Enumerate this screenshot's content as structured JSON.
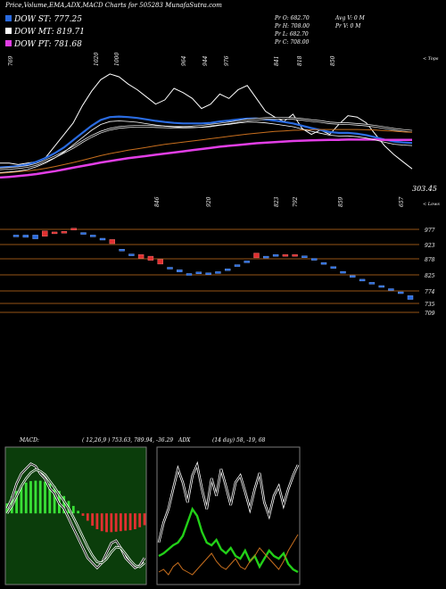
{
  "header": {
    "title": "Price,Volume,EMA,ADX,MACD Charts for 505283 MunafaSutra.com"
  },
  "legend": [
    {
      "label": "DOW ST: 777.25",
      "color": "#2a6be0"
    },
    {
      "label": "DOW MT: 819.71",
      "color": "#ffffff"
    },
    {
      "label": "DOW PT: 781.68",
      "color": "#e23ee6"
    }
  ],
  "ohlc": {
    "open": "Pr  O: 682.70",
    "high": "Pr  H: 708.00",
    "low": "Pr  L: 682.70",
    "close": "Pr  C: 708.00",
    "avg_volume": "Avg V: 0  M",
    "volume": "Pr  V: 0  M"
  },
  "chart_data": [
    {
      "type": "line",
      "name": "price-ema-panel",
      "top_label": "< Tops",
      "bottom_label": "< Lows",
      "last_value_label": "303.45",
      "top_annotations": [
        "769",
        "1020",
        "1000",
        "964",
        "944",
        "976",
        "841",
        "818",
        "850"
      ],
      "bottom_annotations": [
        "846",
        "920",
        "823",
        "792",
        "859",
        "657"
      ],
      "x": [
        0,
        1,
        2,
        3,
        4,
        5,
        6,
        7,
        8,
        9,
        10,
        11,
        12,
        13,
        14,
        15,
        16,
        17,
        18,
        19,
        20,
        21,
        22,
        23,
        24,
        25,
        26,
        27,
        28,
        29,
        30,
        31,
        32,
        33,
        34,
        35,
        36,
        37,
        38,
        39,
        40,
        41,
        42,
        43,
        44,
        45
      ],
      "series": [
        {
          "color": "#ffffff",
          "values": [
            700,
            700,
            695,
            700,
            705,
            720,
            760,
            800,
            840,
            900,
            950,
            990,
            1010,
            1000,
            975,
            955,
            930,
            905,
            920,
            960,
            945,
            925,
            890,
            905,
            940,
            925,
            955,
            970,
            925,
            880,
            860,
            845,
            870,
            820,
            800,
            815,
            800,
            835,
            865,
            860,
            840,
            800,
            760,
            730,
            705,
            680
          ]
        },
        {
          "color": "#2a6be0",
          "values": [
            685,
            687,
            690,
            695,
            705,
            718,
            735,
            755,
            780,
            805,
            830,
            850,
            860,
            862,
            860,
            857,
            852,
            847,
            843,
            840,
            838,
            838,
            838,
            840,
            845,
            848,
            852,
            855,
            855,
            852,
            848,
            843,
            838,
            830,
            822,
            815,
            808,
            805,
            805,
            802,
            797,
            790,
            782,
            775,
            772,
            770
          ]
        },
        {
          "color": "#ffffff",
          "values": [
            680,
            682,
            684,
            688,
            696,
            708,
            722,
            738,
            755,
            775,
            793,
            808,
            818,
            824,
            827,
            828,
            828,
            827,
            826,
            825,
            825,
            826,
            828,
            832,
            836,
            840,
            845,
            850,
            853,
            855,
            856,
            856,
            855,
            852,
            848,
            845,
            840,
            838,
            837,
            835,
            832,
            828,
            823,
            818,
            814,
            811
          ]
        },
        {
          "color": "#c86f1e",
          "values": [
            665,
            667,
            670,
            673,
            677,
            682,
            688,
            695,
            702,
            710,
            718,
            726,
            733,
            739,
            745,
            750,
            755,
            760,
            765,
            769,
            773,
            777,
            781,
            785,
            789,
            793,
            797,
            801,
            804,
            807,
            810,
            812,
            814,
            815,
            816,
            817,
            817,
            817,
            817,
            817,
            816,
            815,
            813,
            811,
            809,
            807
          ]
        },
        {
          "color": "#e23ee6",
          "values": [
            650,
            652,
            655,
            658,
            662,
            667,
            672,
            678,
            684,
            690,
            696,
            702,
            707,
            712,
            717,
            721,
            725,
            729,
            733,
            737,
            741,
            745,
            749,
            753,
            757,
            760,
            763,
            766,
            769,
            771,
            773,
            775,
            777,
            778,
            779,
            780,
            781,
            781,
            782,
            782,
            782,
            782,
            781,
            781,
            781,
            781
          ]
        }
      ],
      "ylim": [
        600,
        1050
      ]
    },
    {
      "type": "candlestick",
      "name": "daily-candles-panel",
      "levels": [
        "977",
        "923",
        "878",
        "825",
        "774",
        "735",
        "709"
      ],
      "candles": [
        {
          "open": 960,
          "close": 962,
          "up": true
        },
        {
          "open": 955,
          "close": 962,
          "up": true
        },
        {
          "open": 950,
          "close": 962,
          "up": true
        },
        {
          "open": 958,
          "close": 975,
          "up": false
        },
        {
          "open": 968,
          "close": 972,
          "up": false
        },
        {
          "open": 972,
          "close": 974,
          "up": false
        },
        {
          "open": 978,
          "close": 984,
          "up": false
        },
        {
          "open": 968,
          "close": 970,
          "up": true
        },
        {
          "open": 960,
          "close": 962,
          "up": true
        },
        {
          "open": 950,
          "close": 952,
          "up": true
        },
        {
          "open": 935,
          "close": 948,
          "up": false
        },
        {
          "open": 915,
          "close": 917,
          "up": true
        },
        {
          "open": 900,
          "close": 902,
          "up": true
        },
        {
          "open": 888,
          "close": 900,
          "up": false
        },
        {
          "open": 882,
          "close": 895,
          "up": false
        },
        {
          "open": 870,
          "close": 885,
          "up": false
        },
        {
          "open": 858,
          "close": 860,
          "up": true
        },
        {
          "open": 845,
          "close": 852,
          "up": true
        },
        {
          "open": 838,
          "close": 840,
          "up": true
        },
        {
          "open": 842,
          "close": 845,
          "up": true
        },
        {
          "open": 840,
          "close": 842,
          "up": true
        },
        {
          "open": 843,
          "close": 846,
          "up": true
        },
        {
          "open": 852,
          "close": 855,
          "up": true
        },
        {
          "open": 865,
          "close": 868,
          "up": true
        },
        {
          "open": 878,
          "close": 880,
          "up": true
        },
        {
          "open": 890,
          "close": 905,
          "up": false
        },
        {
          "open": 893,
          "close": 895,
          "up": true
        },
        {
          "open": 898,
          "close": 900,
          "up": true
        },
        {
          "open": 895,
          "close": 900,
          "up": false
        },
        {
          "open": 895,
          "close": 900,
          "up": false
        },
        {
          "open": 893,
          "close": 896,
          "up": true
        },
        {
          "open": 885,
          "close": 888,
          "up": true
        },
        {
          "open": 872,
          "close": 875,
          "up": true
        },
        {
          "open": 860,
          "close": 862,
          "up": true
        },
        {
          "open": 845,
          "close": 847,
          "up": true
        },
        {
          "open": 832,
          "close": 834,
          "up": true
        },
        {
          "open": 820,
          "close": 822,
          "up": true
        },
        {
          "open": 810,
          "close": 812,
          "up": true
        },
        {
          "open": 800,
          "close": 802,
          "up": true
        },
        {
          "open": 790,
          "close": 792,
          "up": true
        },
        {
          "open": 780,
          "close": 782,
          "up": true
        },
        {
          "open": 758,
          "close": 770,
          "up": true
        }
      ],
      "ylim": [
        700,
        1000
      ]
    },
    {
      "type": "bar",
      "name": "macd-panel",
      "label": "MACD:",
      "values_label": "( 12,26,9 ) 753.63,  789.94, -36.29",
      "histogram": [
        20,
        35,
        45,
        55,
        62,
        65,
        66,
        66,
        64,
        60,
        55,
        45,
        35,
        25,
        15,
        5,
        -5,
        -15,
        -25,
        -32,
        -36,
        -38,
        -38,
        -37,
        -36,
        -35,
        -34,
        -32,
        -28,
        -24
      ],
      "macd": [
        10,
        30,
        60,
        80,
        90,
        100,
        95,
        80,
        70,
        50,
        40,
        20,
        10,
        -10,
        -30,
        -50,
        -70,
        -90,
        -100,
        -110,
        -100,
        -80,
        -60,
        -55,
        -70,
        -90,
        -100,
        -110,
        -105,
        -90
      ],
      "signal": [
        0,
        15,
        35,
        55,
        70,
        82,
        88,
        85,
        78,
        65,
        52,
        38,
        25,
        10,
        -8,
        -28,
        -48,
        -68,
        -85,
        -98,
        -100,
        -92,
        -78,
        -68,
        -70,
        -82,
        -95,
        -105,
        -108,
        -100
      ],
      "ylim": [
        -140,
        130
      ]
    },
    {
      "type": "line",
      "name": "adx-panel",
      "label": "ADX",
      "values_label": "(14 day) 58, -19, 68",
      "series": [
        {
          "color": "#ffffff",
          "values": [
            30,
            45,
            55,
            70,
            85,
            75,
            60,
            80,
            88,
            70,
            55,
            78,
            65,
            85,
            72,
            58,
            75,
            80,
            68,
            55,
            70,
            82,
            60,
            50,
            65,
            72,
            58,
            70,
            80,
            88
          ]
        },
        {
          "color": "#22d018",
          "values": [
            20,
            22,
            25,
            28,
            30,
            35,
            45,
            55,
            50,
            38,
            30,
            28,
            32,
            25,
            22,
            26,
            20,
            18,
            24,
            16,
            20,
            12,
            18,
            24,
            20,
            18,
            22,
            14,
            10,
            8
          ]
        },
        {
          "color": "#c86f1e",
          "values": [
            8,
            10,
            6,
            12,
            15,
            10,
            8,
            6,
            10,
            14,
            18,
            22,
            16,
            12,
            10,
            14,
            18,
            12,
            10,
            16,
            20,
            26,
            22,
            18,
            14,
            10,
            16,
            24,
            30,
            36
          ]
        }
      ],
      "ylim": [
        0,
        100
      ]
    }
  ]
}
